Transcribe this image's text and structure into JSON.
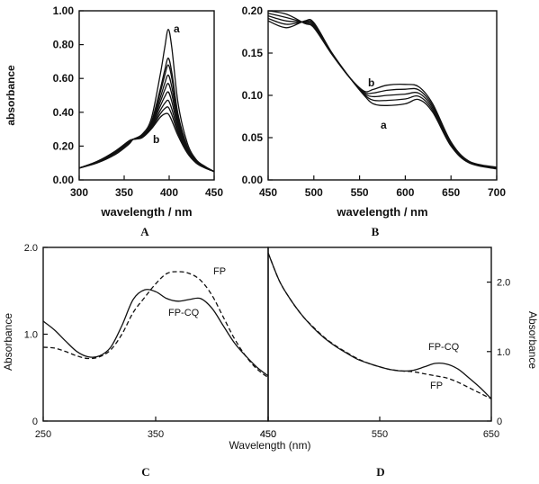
{
  "figure": {
    "panel_letters": [
      "A",
      "B",
      "C",
      "D"
    ]
  },
  "chart_data": [
    {
      "panel": "A",
      "type": "line",
      "xlabel": "wavelength / nm",
      "ylabel": "absorbance",
      "xlim": [
        300,
        450
      ],
      "ylim": [
        0,
        1.0
      ],
      "xticks": [
        "300",
        "350",
        "400",
        "450"
      ],
      "yticks": [
        "0.00",
        "0.20",
        "0.40",
        "0.60",
        "0.80",
        "1.00"
      ],
      "annotations": [
        "a",
        "b"
      ],
      "peak_wavelength": 399,
      "peak_values": [
        0.89,
        0.72,
        0.68,
        0.62,
        0.57,
        0.52,
        0.47,
        0.43,
        0.39
      ],
      "isosbestic": [
        360,
        0.24
      ],
      "series": [
        {
          "label": "a",
          "x": [
            300,
            320,
            340,
            355,
            360,
            370,
            380,
            390,
            395,
            399,
            403,
            410,
            420,
            430,
            440,
            450
          ],
          "y": [
            0.07,
            0.1,
            0.15,
            0.21,
            0.24,
            0.27,
            0.36,
            0.62,
            0.78,
            0.89,
            0.78,
            0.45,
            0.22,
            0.12,
            0.08,
            0.05
          ]
        },
        {
          "label": "b",
          "x": [
            300,
            320,
            340,
            355,
            360,
            370,
            380,
            390,
            395,
            399,
            403,
            410,
            420,
            430,
            440,
            450
          ],
          "y": [
            0.07,
            0.11,
            0.17,
            0.23,
            0.24,
            0.25,
            0.3,
            0.37,
            0.39,
            0.39,
            0.35,
            0.26,
            0.16,
            0.1,
            0.07,
            0.05
          ]
        }
      ]
    },
    {
      "panel": "B",
      "type": "line",
      "xlabel": "wavelength / nm",
      "ylabel": "",
      "xlim": [
        450,
        700
      ],
      "ylim": [
        0,
        0.2
      ],
      "xticks": [
        "450",
        "500",
        "550",
        "600",
        "650",
        "700"
      ],
      "yticks": [
        "0.00",
        "0.05",
        "0.10",
        "0.15",
        "0.20"
      ],
      "annotations": [
        "a",
        "b"
      ],
      "series": [
        {
          "label": "a",
          "x": [
            450,
            470,
            490,
            500,
            520,
            540,
            555,
            565,
            580,
            600,
            615,
            630,
            650,
            670,
            700
          ],
          "y": [
            0.188,
            0.18,
            0.188,
            0.186,
            0.15,
            0.12,
            0.1,
            0.09,
            0.088,
            0.09,
            0.095,
            0.08,
            0.04,
            0.02,
            0.013
          ]
        },
        {
          "label": "b",
          "x": [
            450,
            470,
            490,
            500,
            520,
            540,
            555,
            565,
            580,
            600,
            615,
            630,
            650,
            670,
            700
          ],
          "y": [
            0.2,
            0.196,
            0.185,
            0.18,
            0.148,
            0.12,
            0.105,
            0.107,
            0.112,
            0.113,
            0.11,
            0.09,
            0.045,
            0.022,
            0.015
          ]
        }
      ]
    },
    {
      "panel": "C",
      "type": "line",
      "xlabel": "Wavelength (nm)",
      "ylabel": "Absorbance",
      "xlim": [
        250,
        450
      ],
      "ylim": [
        0,
        2.0
      ],
      "xticks": [
        "250",
        "350",
        "450"
      ],
      "yticks": [
        "0",
        "1.0",
        "2.0"
      ],
      "series": [
        {
          "name": "FP-CQ",
          "style": "solid",
          "x": [
            250,
            260,
            270,
            280,
            290,
            300,
            310,
            320,
            330,
            340,
            350,
            360,
            370,
            380,
            390,
            400,
            410,
            420,
            430,
            440,
            450
          ],
          "y": [
            1.15,
            1.05,
            0.92,
            0.8,
            0.74,
            0.75,
            0.85,
            1.1,
            1.4,
            1.51,
            1.49,
            1.41,
            1.38,
            1.4,
            1.41,
            1.3,
            1.1,
            0.9,
            0.75,
            0.62,
            0.52
          ]
        },
        {
          "name": "FP",
          "style": "dashed",
          "x": [
            250,
            260,
            270,
            280,
            290,
            300,
            310,
            320,
            330,
            340,
            350,
            360,
            370,
            380,
            390,
            400,
            410,
            420,
            430,
            440,
            450
          ],
          "y": [
            0.85,
            0.84,
            0.8,
            0.75,
            0.72,
            0.74,
            0.82,
            1.0,
            1.25,
            1.42,
            1.58,
            1.7,
            1.72,
            1.7,
            1.62,
            1.45,
            1.2,
            0.95,
            0.75,
            0.6,
            0.5
          ]
        }
      ]
    },
    {
      "panel": "D",
      "type": "line",
      "xlabel": "",
      "ylabel": "Absorbance",
      "yaxis_side": "right",
      "xlim": [
        450,
        650
      ],
      "ylim": [
        0,
        2.5
      ],
      "xticks": [
        "450",
        "550",
        "650"
      ],
      "yticks": [
        "0",
        "1.0",
        "2.0"
      ],
      "series": [
        {
          "name": "FP-CQ",
          "style": "solid",
          "x": [
            450,
            460,
            470,
            480,
            490,
            500,
            510,
            520,
            530,
            540,
            550,
            560,
            570,
            580,
            590,
            600,
            610,
            620,
            630,
            640,
            650
          ],
          "y": [
            2.42,
            2.02,
            1.75,
            1.53,
            1.35,
            1.2,
            1.08,
            0.98,
            0.89,
            0.83,
            0.78,
            0.74,
            0.72,
            0.73,
            0.78,
            0.83,
            0.82,
            0.75,
            0.62,
            0.48,
            0.32
          ]
        },
        {
          "name": "FP",
          "style": "dashed",
          "x": [
            450,
            460,
            470,
            480,
            490,
            500,
            510,
            520,
            530,
            540,
            550,
            560,
            570,
            580,
            590,
            600,
            610,
            620,
            630,
            640,
            650
          ],
          "y": [
            2.42,
            2.02,
            1.75,
            1.53,
            1.36,
            1.21,
            1.09,
            0.99,
            0.9,
            0.83,
            0.78,
            0.74,
            0.72,
            0.71,
            0.68,
            0.65,
            0.62,
            0.56,
            0.48,
            0.4,
            0.32
          ]
        }
      ]
    }
  ]
}
